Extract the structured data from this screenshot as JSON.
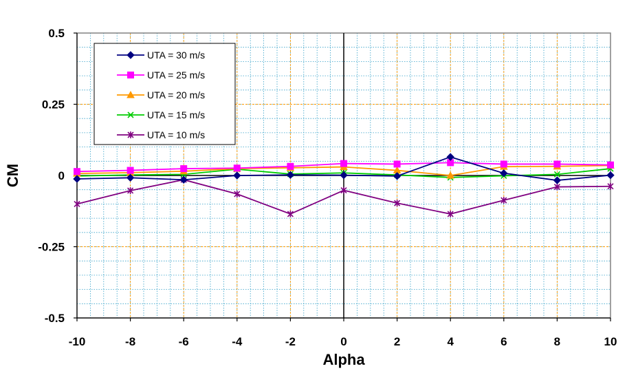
{
  "chart_data": {
    "type": "line",
    "title": "",
    "xlabel": "Alpha",
    "ylabel": "CM",
    "xlim": [
      -10,
      10
    ],
    "ylim": [
      -0.5,
      0.5
    ],
    "x_ticks": [
      -10,
      -8,
      -6,
      -4,
      -2,
      0,
      2,
      4,
      6,
      8,
      10
    ],
    "x_tick_labels": [
      "-10",
      "-8",
      "-6",
      "-4",
      "-2",
      "0",
      "2",
      "4",
      "6",
      "8",
      "10"
    ],
    "y_ticks": [
      0.5,
      0.25,
      0,
      -0.25,
      -0.5
    ],
    "y_tick_labels": [
      "0.5",
      "0.25",
      "0",
      "-0.25",
      "-0.5"
    ],
    "x": [
      -10,
      -8,
      -6,
      -4,
      -2,
      0,
      2,
      4,
      6,
      8,
      10
    ],
    "legend_position": "top-left",
    "series": [
      {
        "name": "UTA = 30 m/s",
        "color": "#000080",
        "marker": "diamond",
        "values": [
          -0.012,
          -0.008,
          -0.015,
          0.0,
          0.002,
          0.001,
          -0.002,
          0.065,
          0.008,
          -0.017,
          0.001
        ]
      },
      {
        "name": "UTA = 25 m/s",
        "color": "#ff00ff",
        "marker": "square",
        "values": [
          0.014,
          0.018,
          0.024,
          0.026,
          0.032,
          0.042,
          0.04,
          0.045,
          0.04,
          0.04,
          0.037
        ]
      },
      {
        "name": "UTA = 20 m/s",
        "color": "#ff9900",
        "marker": "triangle",
        "values": [
          0.007,
          0.01,
          0.015,
          0.024,
          0.027,
          0.03,
          0.018,
          0.0,
          0.031,
          0.032,
          0.035
        ]
      },
      {
        "name": "UTA = 15 m/s",
        "color": "#00cc00",
        "marker": "x",
        "values": [
          -0.002,
          0.002,
          0.004,
          0.022,
          0.005,
          0.009,
          0.002,
          -0.007,
          -0.001,
          0.004,
          0.024
        ]
      },
      {
        "name": "UTA = 10 m/s",
        "color": "#800080",
        "marker": "star",
        "values": [
          -0.1,
          -0.053,
          -0.015,
          -0.065,
          -0.135,
          -0.052,
          -0.097,
          -0.135,
          -0.087,
          -0.04,
          -0.038
        ]
      }
    ]
  }
}
